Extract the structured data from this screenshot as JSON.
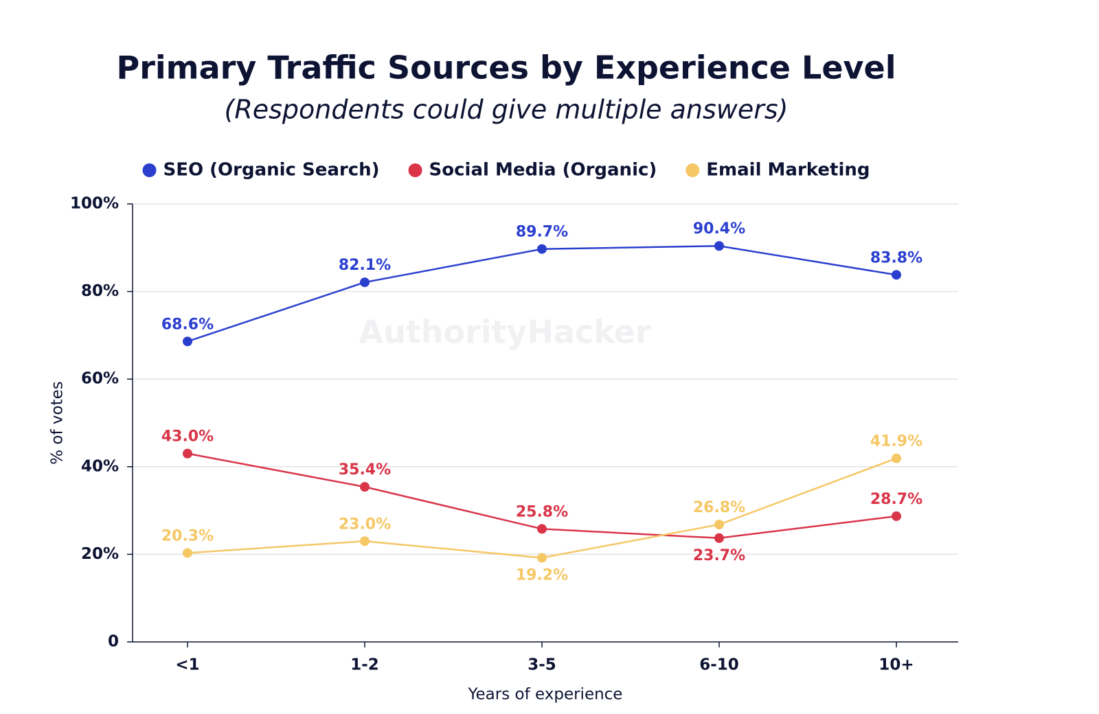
{
  "chart_data": {
    "type": "line",
    "title": "Primary Traffic Sources by Experience Level",
    "subtitle": "(Respondents could give multiple answers)",
    "watermark": "AuthorityHacker",
    "x_label": "Years of experience",
    "y_label": "% of votes",
    "categories": [
      "<1",
      "1-2",
      "3-5",
      "6-10",
      "10+"
    ],
    "series": [
      {
        "name": "SEO (Organic Search)",
        "color": "#2b3fcf",
        "values": [
          68.6,
          82.1,
          89.7,
          90.4,
          83.8
        ],
        "value_labels": [
          "68.6%",
          "82.1%",
          "89.7%",
          "90.4%",
          "83.8%"
        ]
      },
      {
        "name": "Social Media (Organic)",
        "color": "#d93448",
        "values": [
          43.0,
          35.4,
          25.8,
          23.7,
          28.7
        ],
        "value_labels": [
          "43.0%",
          "35.4%",
          "25.8%",
          "23.7%",
          "28.7%"
        ]
      },
      {
        "name": "Email Marketing",
        "color": "#f5c765",
        "values": [
          20.3,
          23.0,
          19.2,
          26.8,
          41.9
        ],
        "value_labels": [
          "20.3%",
          "23.0%",
          "19.2%",
          "26.8%",
          "41.9%"
        ]
      }
    ],
    "ylim": [
      0,
      100
    ],
    "yticks": [
      0,
      {
        "value": 20,
        "label": "20%"
      },
      {
        "value": 40,
        "label": "40%"
      },
      {
        "value": 60,
        "label": "60%"
      },
      {
        "value": 80,
        "label": "80%"
      },
      {
        "value": 100,
        "label": "100%"
      }
    ],
    "grid": true,
    "legend": "top"
  }
}
